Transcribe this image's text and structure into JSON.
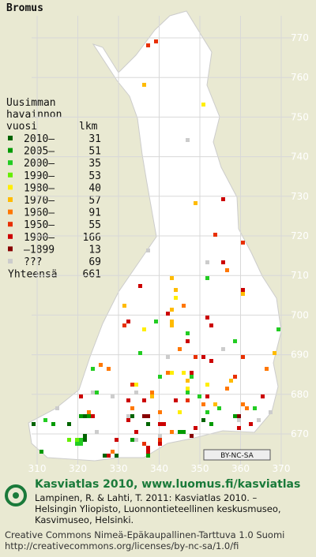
{
  "title": "Bromus",
  "legend": {
    "heading": [
      "Uusimman",
      "havainnon",
      "vuosi"
    ],
    "count_heading": "lkm",
    "items": [
      {
        "label": "2010–",
        "count": "31",
        "color": "#006400"
      },
      {
        "label": "2005–",
        "count": "51",
        "color": "#009a00"
      },
      {
        "label": "2000–",
        "count": "35",
        "color": "#22cc22"
      },
      {
        "label": "1990–",
        "count": "53",
        "color": "#66ee00"
      },
      {
        "label": "1980–",
        "count": "40",
        "color": "#ffee00"
      },
      {
        "label": "1970–",
        "count": "57",
        "color": "#ffbb00"
      },
      {
        "label": "1960–",
        "count": "91",
        "color": "#ff7700"
      },
      {
        "label": "1950–",
        "count": "55",
        "color": "#e83000"
      },
      {
        "label": "1900–",
        "count": "166",
        "color": "#cc0000"
      },
      {
        "label": "–1899",
        "count": "13",
        "color": "#880000"
      },
      {
        "label": "???",
        "count": "69",
        "color": "#cccccc"
      }
    ],
    "total_label": "Yhteensä",
    "total": "661"
  },
  "grid": {
    "north": [
      "770",
      "760",
      "750",
      "740",
      "730",
      "720",
      "710",
      "700",
      "690",
      "680",
      "670"
    ],
    "east": [
      "310",
      "320",
      "330",
      "340",
      "350",
      "360",
      "370"
    ]
  },
  "license_badge": "BY-NC-SA",
  "footer": {
    "headline": "Kasviatlas 2010, www.luomus.fi/kasviatlas",
    "citation": [
      "Lampinen, R. & Lahti, T. 2011: Kasviatlas 2010. –",
      "Helsingin Yliopisto, Luonnontieteellinen keskusmuseo,",
      "Kasvimuseo, Helsinki."
    ],
    "license": [
      "Creative Commons Nimeä-Epäkaupallinen-Tarttuva 1.0 Suomi",
      "http://creativecommons.org/licenses/by-nc-sa/1.0/fi"
    ]
  }
}
